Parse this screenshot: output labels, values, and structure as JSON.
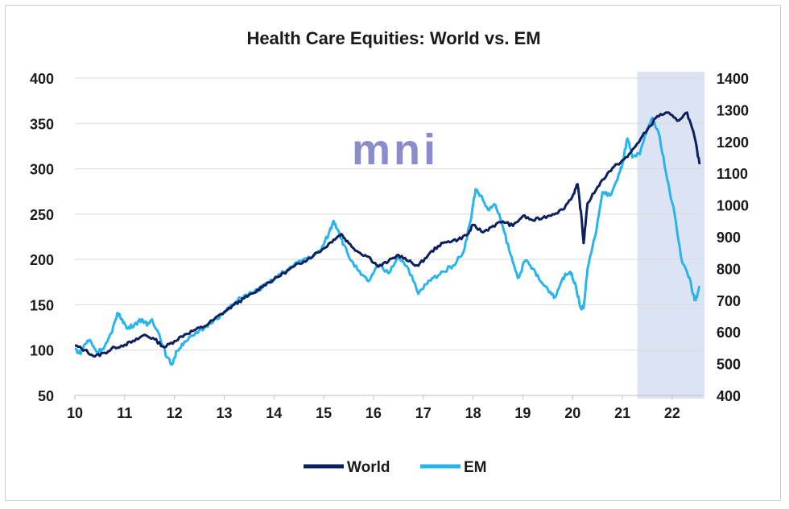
{
  "chart_data": {
    "type": "line",
    "title": "Health Care Equities: World vs. EM",
    "watermark": "mni",
    "x_ticks": [
      "10",
      "11",
      "12",
      "13",
      "14",
      "15",
      "16",
      "17",
      "18",
      "19",
      "20",
      "21",
      "22"
    ],
    "x_range": [
      10,
      22.6
    ],
    "left_axis": {
      "ticks": [
        400,
        350,
        300,
        250,
        200,
        150,
        100,
        50
      ],
      "ylim": [
        50,
        400
      ]
    },
    "right_axis": {
      "ticks": [
        1400,
        1300,
        1200,
        1100,
        1000,
        900,
        800,
        700,
        600,
        500,
        400
      ],
      "ylim": [
        400,
        1400
      ]
    },
    "shaded_region": {
      "x_start": 21.3,
      "x_end": 22.65,
      "color": "#dce3f3"
    },
    "series": [
      {
        "name": "World",
        "axis": "left",
        "color": "#0e1f5e",
        "points": [
          [
            10.0,
            105
          ],
          [
            10.2,
            100
          ],
          [
            10.4,
            93
          ],
          [
            10.6,
            97
          ],
          [
            10.8,
            103
          ],
          [
            11.0,
            106
          ],
          [
            11.2,
            110
          ],
          [
            11.4,
            117
          ],
          [
            11.6,
            112
          ],
          [
            11.8,
            103
          ],
          [
            12.0,
            110
          ],
          [
            12.2,
            117
          ],
          [
            12.4,
            122
          ],
          [
            12.6,
            126
          ],
          [
            12.8,
            134
          ],
          [
            13.0,
            142
          ],
          [
            13.2,
            150
          ],
          [
            13.4,
            157
          ],
          [
            13.6,
            163
          ],
          [
            13.8,
            172
          ],
          [
            14.0,
            178
          ],
          [
            14.2,
            185
          ],
          [
            14.4,
            192
          ],
          [
            14.6,
            198
          ],
          [
            14.8,
            205
          ],
          [
            15.0,
            212
          ],
          [
            15.2,
            222
          ],
          [
            15.35,
            228
          ],
          [
            15.5,
            218
          ],
          [
            15.7,
            208
          ],
          [
            15.9,
            203
          ],
          [
            16.1,
            192
          ],
          [
            16.3,
            198
          ],
          [
            16.5,
            205
          ],
          [
            16.7,
            198
          ],
          [
            16.9,
            193
          ],
          [
            17.1,
            205
          ],
          [
            17.3,
            215
          ],
          [
            17.5,
            220
          ],
          [
            17.7,
            222
          ],
          [
            17.9,
            228
          ],
          [
            18.0,
            238
          ],
          [
            18.2,
            230
          ],
          [
            18.4,
            237
          ],
          [
            18.6,
            242
          ],
          [
            18.8,
            237
          ],
          [
            19.0,
            248
          ],
          [
            19.2,
            243
          ],
          [
            19.4,
            246
          ],
          [
            19.6,
            250
          ],
          [
            19.8,
            255
          ],
          [
            20.0,
            270
          ],
          [
            20.1,
            283
          ],
          [
            20.18,
            245
          ],
          [
            20.22,
            218
          ],
          [
            20.3,
            262
          ],
          [
            20.5,
            280
          ],
          [
            20.7,
            295
          ],
          [
            20.9,
            305
          ],
          [
            21.1,
            313
          ],
          [
            21.3,
            328
          ],
          [
            21.5,
            343
          ],
          [
            21.7,
            358
          ],
          [
            21.9,
            362
          ],
          [
            22.1,
            353
          ],
          [
            22.3,
            362
          ],
          [
            22.45,
            335
          ],
          [
            22.55,
            305
          ]
        ]
      },
      {
        "name": "EM",
        "axis": "right",
        "color": "#29b5eb",
        "points": [
          [
            10.0,
            548
          ],
          [
            10.1,
            532
          ],
          [
            10.2,
            562
          ],
          [
            10.3,
            575
          ],
          [
            10.45,
            535
          ],
          [
            10.6,
            555
          ],
          [
            10.75,
            600
          ],
          [
            10.85,
            660
          ],
          [
            10.95,
            640
          ],
          [
            11.05,
            610
          ],
          [
            11.2,
            625
          ],
          [
            11.35,
            640
          ],
          [
            11.45,
            620
          ],
          [
            11.55,
            640
          ],
          [
            11.7,
            590
          ],
          [
            11.85,
            520
          ],
          [
            11.95,
            498
          ],
          [
            12.05,
            540
          ],
          [
            12.2,
            570
          ],
          [
            12.4,
            590
          ],
          [
            12.6,
            612
          ],
          [
            12.8,
            640
          ],
          [
            13.0,
            660
          ],
          [
            13.2,
            690
          ],
          [
            13.4,
            715
          ],
          [
            13.6,
            725
          ],
          [
            13.8,
            745
          ],
          [
            14.0,
            765
          ],
          [
            14.2,
            790
          ],
          [
            14.4,
            810
          ],
          [
            14.6,
            830
          ],
          [
            14.8,
            840
          ],
          [
            14.95,
            860
          ],
          [
            15.1,
            910
          ],
          [
            15.2,
            950
          ],
          [
            15.3,
            918
          ],
          [
            15.4,
            875
          ],
          [
            15.55,
            825
          ],
          [
            15.75,
            780
          ],
          [
            15.9,
            760
          ],
          [
            16.1,
            810
          ],
          [
            16.3,
            785
          ],
          [
            16.5,
            840
          ],
          [
            16.7,
            800
          ],
          [
            16.9,
            720
          ],
          [
            17.05,
            750
          ],
          [
            17.2,
            770
          ],
          [
            17.4,
            790
          ],
          [
            17.6,
            810
          ],
          [
            17.8,
            850
          ],
          [
            17.95,
            950
          ],
          [
            18.05,
            1050
          ],
          [
            18.15,
            1030
          ],
          [
            18.3,
            985
          ],
          [
            18.45,
            1000
          ],
          [
            18.6,
            930
          ],
          [
            18.75,
            845
          ],
          [
            18.9,
            770
          ],
          [
            19.05,
            825
          ],
          [
            19.2,
            800
          ],
          [
            19.35,
            760
          ],
          [
            19.5,
            735
          ],
          [
            19.65,
            710
          ],
          [
            19.8,
            770
          ],
          [
            19.95,
            790
          ],
          [
            20.05,
            755
          ],
          [
            20.15,
            680
          ],
          [
            20.22,
            675
          ],
          [
            20.3,
            800
          ],
          [
            20.45,
            900
          ],
          [
            20.6,
            1040
          ],
          [
            20.75,
            1030
          ],
          [
            20.9,
            1080
          ],
          [
            21.0,
            1130
          ],
          [
            21.1,
            1210
          ],
          [
            21.2,
            1150
          ],
          [
            21.35,
            1160
          ],
          [
            21.5,
            1240
          ],
          [
            21.6,
            1275
          ],
          [
            21.75,
            1215
          ],
          [
            21.9,
            1080
          ],
          [
            22.05,
            970
          ],
          [
            22.2,
            820
          ],
          [
            22.35,
            770
          ],
          [
            22.45,
            700
          ],
          [
            22.5,
            710
          ],
          [
            22.55,
            745
          ]
        ]
      }
    ]
  }
}
